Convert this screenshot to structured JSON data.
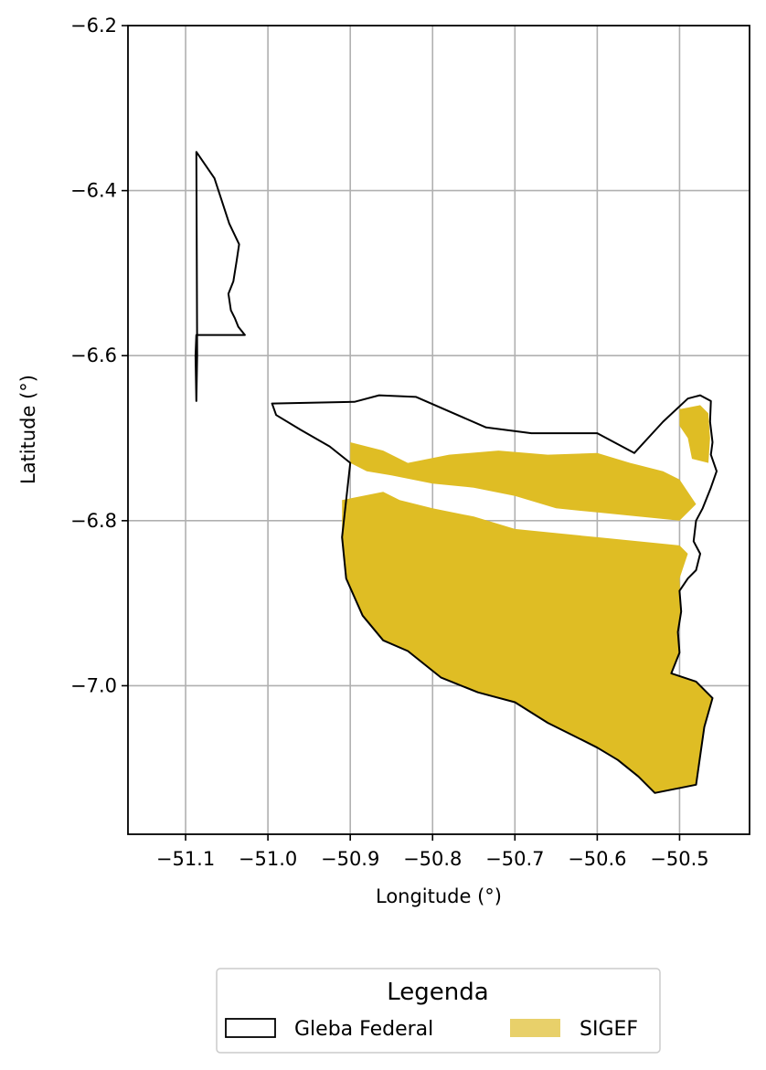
{
  "chart_data": {
    "type": "map",
    "xlabel": "Longitude (°)",
    "ylabel": "Latitude (°)",
    "xlim": [
      -51.17,
      -50.415
    ],
    "ylim": [
      -7.18,
      -6.2
    ],
    "grid": true,
    "x_ticks": [
      {
        "value": -51.1,
        "label": "−51.1"
      },
      {
        "value": -51.0,
        "label": "−51.0"
      },
      {
        "value": -50.9,
        "label": "−50.9"
      },
      {
        "value": -50.8,
        "label": "−50.8"
      },
      {
        "value": -50.7,
        "label": "−50.7"
      },
      {
        "value": -50.6,
        "label": "−50.6"
      },
      {
        "value": -50.5,
        "label": "−50.5"
      }
    ],
    "y_ticks": [
      {
        "value": -6.2,
        "label": "−6.2"
      },
      {
        "value": -6.4,
        "label": "−6.4"
      },
      {
        "value": -6.6,
        "label": "−6.6"
      },
      {
        "value": -6.8,
        "label": "−6.8"
      },
      {
        "value": -7.0,
        "label": "−7.0"
      }
    ],
    "legend": {
      "title": "Legenda",
      "placement": "bottom-center",
      "entries": [
        {
          "label": "Gleba Federal",
          "style": "outline",
          "color": "#000000"
        },
        {
          "label": "SIGEF",
          "style": "fill",
          "color": "#e8d06a"
        }
      ]
    },
    "series": [
      {
        "name": "Gleba Federal",
        "kind": "outline",
        "color": "#000000",
        "polygons": [
          [
            [
              -51.087,
              -6.353
            ],
            [
              -51.065,
              -6.385
            ],
            [
              -51.047,
              -6.44
            ],
            [
              -51.035,
              -6.465
            ],
            [
              -51.038,
              -6.485
            ],
            [
              -51.042,
              -6.51
            ],
            [
              -51.048,
              -6.525
            ],
            [
              -51.045,
              -6.545
            ],
            [
              -51.04,
              -6.555
            ],
            [
              -51.036,
              -6.565
            ],
            [
              -51.028,
              -6.575
            ],
            [
              -51.087,
              -6.575
            ],
            [
              -51.088,
              -6.6
            ],
            [
              -51.087,
              -6.655
            ],
            [
              -51.086,
              -6.6
            ],
            [
              -51.087,
              -6.353
            ]
          ],
          [
            [
              -50.995,
              -6.658
            ],
            [
              -50.895,
              -6.656
            ],
            [
              -50.865,
              -6.648
            ],
            [
              -50.82,
              -6.65
            ],
            [
              -50.735,
              -6.687
            ],
            [
              -50.68,
              -6.694
            ],
            [
              -50.6,
              -6.694
            ],
            [
              -50.555,
              -6.718
            ],
            [
              -50.52,
              -6.68
            ],
            [
              -50.49,
              -6.652
            ],
            [
              -50.475,
              -6.648
            ],
            [
              -50.462,
              -6.655
            ],
            [
              -50.463,
              -6.68
            ],
            [
              -50.46,
              -6.705
            ],
            [
              -50.462,
              -6.72
            ],
            [
              -50.455,
              -6.74
            ],
            [
              -50.462,
              -6.76
            ],
            [
              -50.472,
              -6.785
            ],
            [
              -50.48,
              -6.8
            ],
            [
              -50.483,
              -6.825
            ],
            [
              -50.475,
              -6.84
            ],
            [
              -50.48,
              -6.86
            ],
            [
              -50.49,
              -6.87
            ],
            [
              -50.5,
              -6.885
            ],
            [
              -50.498,
              -6.91
            ],
            [
              -50.502,
              -6.935
            ],
            [
              -50.5,
              -6.96
            ],
            [
              -50.51,
              -6.985
            ],
            [
              -50.48,
              -6.995
            ],
            [
              -50.46,
              -7.015
            ],
            [
              -50.47,
              -7.05
            ],
            [
              -50.475,
              -7.085
            ],
            [
              -50.48,
              -7.12
            ],
            [
              -50.53,
              -7.13
            ],
            [
              -50.55,
              -7.11
            ],
            [
              -50.575,
              -7.09
            ],
            [
              -50.6,
              -7.075
            ],
            [
              -50.63,
              -7.06
            ],
            [
              -50.66,
              -7.045
            ],
            [
              -50.7,
              -7.02
            ],
            [
              -50.745,
              -7.008
            ],
            [
              -50.79,
              -6.99
            ],
            [
              -50.83,
              -6.958
            ],
            [
              -50.86,
              -6.945
            ],
            [
              -50.885,
              -6.915
            ],
            [
              -50.905,
              -6.87
            ],
            [
              -50.91,
              -6.82
            ],
            [
              -50.905,
              -6.775
            ],
            [
              -50.9,
              -6.73
            ],
            [
              -50.925,
              -6.71
            ],
            [
              -50.96,
              -6.69
            ],
            [
              -50.99,
              -6.672
            ],
            [
              -50.995,
              -6.658
            ]
          ]
        ]
      },
      {
        "name": "SIGEF",
        "kind": "fill",
        "color": "#dfbd24",
        "polygons": [
          [
            [
              -50.91,
              -6.775
            ],
            [
              -50.86,
              -6.765
            ],
            [
              -50.84,
              -6.775
            ],
            [
              -50.8,
              -6.785
            ],
            [
              -50.75,
              -6.795
            ],
            [
              -50.7,
              -6.81
            ],
            [
              -50.65,
              -6.815
            ],
            [
              -50.6,
              -6.82
            ],
            [
              -50.55,
              -6.825
            ],
            [
              -50.5,
              -6.83
            ],
            [
              -50.49,
              -6.84
            ],
            [
              -50.5,
              -6.87
            ],
            [
              -50.498,
              -6.91
            ],
            [
              -50.502,
              -6.935
            ],
            [
              -50.5,
              -6.96
            ],
            [
              -50.51,
              -6.985
            ],
            [
              -50.48,
              -6.995
            ],
            [
              -50.46,
              -7.015
            ],
            [
              -50.47,
              -7.05
            ],
            [
              -50.475,
              -7.085
            ],
            [
              -50.48,
              -7.12
            ],
            [
              -50.53,
              -7.13
            ],
            [
              -50.55,
              -7.11
            ],
            [
              -50.575,
              -7.09
            ],
            [
              -50.6,
              -7.075
            ],
            [
              -50.63,
              -7.06
            ],
            [
              -50.66,
              -7.045
            ],
            [
              -50.7,
              -7.02
            ],
            [
              -50.745,
              -7.008
            ],
            [
              -50.79,
              -6.99
            ],
            [
              -50.83,
              -6.958
            ],
            [
              -50.86,
              -6.945
            ],
            [
              -50.885,
              -6.915
            ],
            [
              -50.905,
              -6.87
            ],
            [
              -50.91,
              -6.82
            ],
            [
              -50.91,
              -6.775
            ]
          ],
          [
            [
              -50.9,
              -6.705
            ],
            [
              -50.86,
              -6.715
            ],
            [
              -50.83,
              -6.73
            ],
            [
              -50.78,
              -6.72
            ],
            [
              -50.72,
              -6.715
            ],
            [
              -50.66,
              -6.72
            ],
            [
              -50.6,
              -6.718
            ],
            [
              -50.56,
              -6.73
            ],
            [
              -50.52,
              -6.74
            ],
            [
              -50.5,
              -6.75
            ],
            [
              -50.48,
              -6.78
            ],
            [
              -50.5,
              -6.8
            ],
            [
              -50.55,
              -6.795
            ],
            [
              -50.6,
              -6.79
            ],
            [
              -50.65,
              -6.785
            ],
            [
              -50.7,
              -6.77
            ],
            [
              -50.75,
              -6.76
            ],
            [
              -50.8,
              -6.755
            ],
            [
              -50.85,
              -6.745
            ],
            [
              -50.88,
              -6.74
            ],
            [
              -50.9,
              -6.73
            ],
            [
              -50.9,
              -6.705
            ]
          ],
          [
            [
              -50.5,
              -6.665
            ],
            [
              -50.475,
              -6.66
            ],
            [
              -50.465,
              -6.67
            ],
            [
              -50.463,
              -6.7
            ],
            [
              -50.465,
              -6.73
            ],
            [
              -50.485,
              -6.725
            ],
            [
              -50.49,
              -6.7
            ],
            [
              -50.5,
              -6.685
            ],
            [
              -50.5,
              -6.665
            ]
          ]
        ]
      }
    ]
  }
}
